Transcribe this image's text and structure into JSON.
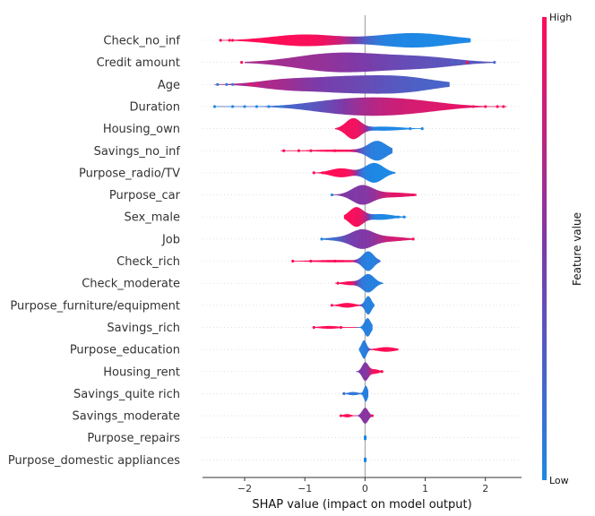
{
  "chart_data": {
    "type": "violin",
    "xlabel": "SHAP value (impact on model output)",
    "xlim": [
      -2.7,
      2.6
    ],
    "xticks": [
      -2,
      -1,
      0,
      1,
      2
    ],
    "xtick_labels": [
      "−2",
      "−1",
      "0",
      "1",
      "2"
    ],
    "colorbar": {
      "title": "Feature value",
      "high_label": "High",
      "low_label": "Low",
      "high_color": "#ff0d57",
      "low_color": "#1e88e5"
    },
    "features": [
      {
        "name": "Check_no_inf",
        "min": -2.4,
        "max": 1.75,
        "width": 0.55,
        "segments": [
          {
            "center": -1.0,
            "spread": 0.55,
            "height": 0.8,
            "value": 1.0
          },
          {
            "center": 0.8,
            "spread": 0.6,
            "height": 1.0,
            "value": 0.0
          }
        ],
        "outliers": [
          {
            "x": -2.4,
            "v": 1
          },
          {
            "x": -2.25,
            "v": 1
          },
          {
            "x": -2.2,
            "v": 1
          }
        ]
      },
      {
        "name": "Credit amount",
        "min": -2.0,
        "max": 2.15,
        "width": 0.75,
        "segments": [
          {
            "center": -0.7,
            "spread": 0.6,
            "height": 0.9,
            "value": 0.7
          },
          {
            "center": 0.1,
            "spread": 0.7,
            "height": 1.0,
            "value": 0.4
          },
          {
            "center": 1.1,
            "spread": 0.5,
            "height": 0.55,
            "value": 0.3
          }
        ],
        "outliers": [
          {
            "x": -2.05,
            "v": 1
          },
          {
            "x": 1.45,
            "v": 0.2
          },
          {
            "x": 1.55,
            "v": 0.2
          },
          {
            "x": 1.7,
            "v": 1
          },
          {
            "x": 2.15,
            "v": 0.2
          }
        ]
      },
      {
        "name": "Age",
        "min": -2.5,
        "max": 1.4,
        "width": 0.7,
        "segments": [
          {
            "center": -0.3,
            "spread": 0.75,
            "height": 1.0,
            "value": 0.45
          },
          {
            "center": 0.7,
            "spread": 0.5,
            "height": 0.6,
            "value": 0.15
          },
          {
            "center": -1.4,
            "spread": 0.4,
            "height": 0.35,
            "value": 0.85
          }
        ],
        "outliers": [
          {
            "x": -2.45,
            "v": 0.1
          },
          {
            "x": -2.3,
            "v": 0.1
          },
          {
            "x": -2.2,
            "v": 0.1
          },
          {
            "x": -1.9,
            "v": 1
          },
          {
            "x": -1.8,
            "v": 1
          }
        ]
      },
      {
        "name": "Duration",
        "min": -2.5,
        "max": 2.35,
        "width": 0.7,
        "segments": [
          {
            "center": 0.2,
            "spread": 0.55,
            "height": 1.0,
            "value": 0.8
          },
          {
            "center": -0.6,
            "spread": 0.5,
            "height": 0.55,
            "value": 0.15
          },
          {
            "center": 1.0,
            "spread": 0.5,
            "height": 0.45,
            "value": 0.9
          }
        ],
        "outliers": [
          {
            "x": -2.5,
            "v": 0
          },
          {
            "x": -2.2,
            "v": 0
          },
          {
            "x": -2.0,
            "v": 0
          },
          {
            "x": -1.8,
            "v": 0
          },
          {
            "x": -1.6,
            "v": 0
          },
          {
            "x": -1.4,
            "v": 0
          },
          {
            "x": 1.4,
            "v": 1
          },
          {
            "x": 1.6,
            "v": 1
          },
          {
            "x": 1.8,
            "v": 1
          },
          {
            "x": 2.0,
            "v": 1
          },
          {
            "x": 2.2,
            "v": 1
          },
          {
            "x": 2.3,
            "v": 1
          }
        ]
      },
      {
        "name": "Housing_own",
        "min": -0.5,
        "max": 0.95,
        "width": 0.8,
        "segments": [
          {
            "center": -0.2,
            "spread": 0.12,
            "height": 1.0,
            "value": 1.0
          },
          {
            "center": 0.3,
            "spread": 0.3,
            "height": 0.2,
            "value": 0.0
          }
        ],
        "outliers": [
          {
            "x": 0.75,
            "v": 0
          },
          {
            "x": 0.95,
            "v": 0
          }
        ]
      },
      {
        "name": "Savings_no_inf",
        "min": -1.4,
        "max": 0.45,
        "width": 0.75,
        "segments": [
          {
            "center": 0.2,
            "spread": 0.15,
            "height": 1.0,
            "value": 0.0
          },
          {
            "center": -0.4,
            "spread": 0.45,
            "height": 0.12,
            "value": 1.0
          }
        ],
        "outliers": [
          {
            "x": -1.35,
            "v": 1
          },
          {
            "x": -1.1,
            "v": 1
          },
          {
            "x": -0.9,
            "v": 1
          },
          {
            "x": -0.5,
            "v": 1
          }
        ]
      },
      {
        "name": "Purpose_radio/TV",
        "min": -0.85,
        "max": 0.5,
        "width": 0.75,
        "segments": [
          {
            "center": 0.15,
            "spread": 0.15,
            "height": 1.0,
            "value": 0.0
          },
          {
            "center": -0.4,
            "spread": 0.18,
            "height": 0.45,
            "value": 1.0
          }
        ],
        "outliers": [
          {
            "x": -0.85,
            "v": 1
          },
          {
            "x": -0.7,
            "v": 1
          }
        ]
      },
      {
        "name": "Purpose_car",
        "min": -0.55,
        "max": 0.85,
        "width": 0.75,
        "segments": [
          {
            "center": -0.05,
            "spread": 0.17,
            "height": 1.0,
            "value": 0.5
          },
          {
            "center": 0.45,
            "spread": 0.3,
            "height": 0.25,
            "value": 0.9
          }
        ],
        "outliers": [
          {
            "x": -0.55,
            "v": 0
          },
          {
            "x": 0.8,
            "v": 1
          }
        ]
      },
      {
        "name": "Sex_male",
        "min": -0.35,
        "max": 0.68,
        "width": 0.75,
        "segments": [
          {
            "center": -0.15,
            "spread": 0.11,
            "height": 1.0,
            "value": 1.0
          },
          {
            "center": 0.25,
            "spread": 0.2,
            "height": 0.3,
            "value": 0.0
          }
        ],
        "outliers": [
          {
            "x": 0.55,
            "v": 0
          },
          {
            "x": 0.65,
            "v": 0
          }
        ]
      },
      {
        "name": "Job",
        "min": -0.72,
        "max": 0.8,
        "width": 0.75,
        "segments": [
          {
            "center": -0.05,
            "spread": 0.18,
            "height": 1.0,
            "value": 0.5
          },
          {
            "center": 0.4,
            "spread": 0.25,
            "height": 0.25,
            "value": 0.85
          },
          {
            "center": -0.45,
            "spread": 0.2,
            "height": 0.15,
            "value": 0.1
          }
        ],
        "outliers": [
          {
            "x": -0.72,
            "v": 0
          },
          {
            "x": 0.8,
            "v": 1
          }
        ]
      },
      {
        "name": "Check_rich",
        "min": -1.2,
        "max": 0.25,
        "width": 0.75,
        "segments": [
          {
            "center": 0.05,
            "spread": 0.09,
            "height": 1.0,
            "value": 0.0
          },
          {
            "center": -0.5,
            "spread": 0.4,
            "height": 0.12,
            "value": 1.0
          }
        ],
        "outliers": [
          {
            "x": -1.2,
            "v": 1
          },
          {
            "x": -0.9,
            "v": 1
          },
          {
            "x": -0.5,
            "v": 1
          }
        ]
      },
      {
        "name": "Check_moderate",
        "min": -0.5,
        "max": 0.3,
        "width": 0.7,
        "segments": [
          {
            "center": 0.05,
            "spread": 0.1,
            "height": 1.0,
            "value": 0.05
          },
          {
            "center": -0.25,
            "spread": 0.12,
            "height": 0.2,
            "value": 1.0
          }
        ],
        "outliers": [
          {
            "x": -0.45,
            "v": 1
          }
        ]
      },
      {
        "name": "Purpose_furniture/equipment",
        "min": -0.55,
        "max": 0.15,
        "width": 0.7,
        "segments": [
          {
            "center": 0.05,
            "spread": 0.05,
            "height": 1.0,
            "value": 0.05
          },
          {
            "center": -0.3,
            "spread": 0.12,
            "height": 0.25,
            "value": 1.0
          }
        ],
        "outliers": [
          {
            "x": -0.55,
            "v": 1
          }
        ]
      },
      {
        "name": "Savings_rich",
        "min": -0.85,
        "max": 0.12,
        "width": 0.7,
        "segments": [
          {
            "center": 0.04,
            "spread": 0.05,
            "height": 1.0,
            "value": 0.05
          },
          {
            "center": -0.6,
            "spread": 0.15,
            "height": 0.15,
            "value": 1.0
          }
        ],
        "outliers": [
          {
            "x": -0.85,
            "v": 1
          },
          {
            "x": -0.4,
            "v": 1
          }
        ]
      },
      {
        "name": "Purpose_education",
        "min": -0.1,
        "max": 0.55,
        "width": 0.7,
        "segments": [
          {
            "center": -0.02,
            "spread": 0.04,
            "height": 1.0,
            "value": 0.05
          },
          {
            "center": 0.35,
            "spread": 0.14,
            "height": 0.25,
            "value": 1.0
          }
        ],
        "outliers": []
      },
      {
        "name": "Housing_rent",
        "min": -0.15,
        "max": 0.3,
        "width": 0.7,
        "segments": [
          {
            "center": 0.0,
            "spread": 0.05,
            "height": 1.0,
            "value": 0.5
          },
          {
            "center": 0.15,
            "spread": 0.08,
            "height": 0.25,
            "value": 1.0
          }
        ],
        "outliers": [
          {
            "x": 0.28,
            "v": 1
          }
        ]
      },
      {
        "name": "Savings_quite rich",
        "min": -0.35,
        "max": 0.05,
        "width": 0.6,
        "segments": [
          {
            "center": 0.01,
            "spread": 0.03,
            "height": 1.0,
            "value": 0.05
          },
          {
            "center": -0.2,
            "spread": 0.08,
            "height": 0.2,
            "value": 0.1
          }
        ],
        "outliers": [
          {
            "x": -0.35,
            "v": 0.2
          }
        ]
      },
      {
        "name": "Savings_moderate",
        "min": -0.4,
        "max": 0.12,
        "width": 0.6,
        "segments": [
          {
            "center": 0.0,
            "spread": 0.05,
            "height": 1.0,
            "value": 0.55
          },
          {
            "center": -0.3,
            "spread": 0.06,
            "height": 0.2,
            "value": 1.0
          }
        ],
        "outliers": [
          {
            "x": -0.4,
            "v": 1
          },
          {
            "x": 0.12,
            "v": 1
          }
        ]
      },
      {
        "name": "Purpose_repairs",
        "min": -0.02,
        "max": 0.02,
        "width": 0.18,
        "segments": [
          {
            "center": 0.0,
            "spread": 0.02,
            "height": 1.0,
            "value": 0.0
          }
        ],
        "outliers": []
      },
      {
        "name": "Purpose_domestic appliances",
        "min": -0.02,
        "max": 0.02,
        "width": 0.18,
        "segments": [
          {
            "center": 0.0,
            "spread": 0.02,
            "height": 1.0,
            "value": 0.0
          }
        ],
        "outliers": []
      }
    ]
  }
}
